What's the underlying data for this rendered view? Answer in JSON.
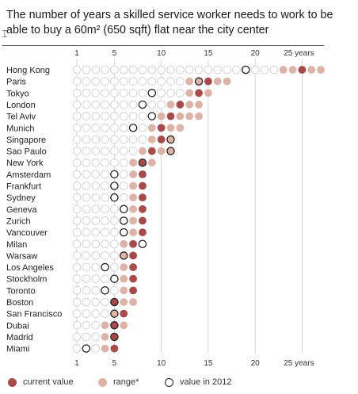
{
  "title": "The number of years a skilled service worker needs to work to be able to buy a 60m² (650 sqft) flat near the city center",
  "legend": {
    "current": "current value",
    "range": "range*",
    "y2012": "value in 2012"
  },
  "colors": {
    "current": "#a94a4a",
    "range": "#dcb3a6",
    "grid": "#c9c9c9",
    "outline": "#222222"
  },
  "chart_data": {
    "type": "dot-range",
    "x_ticks": [
      "1",
      "5",
      "10",
      "15",
      "20",
      "25 years"
    ],
    "x_tick_values": [
      1,
      5,
      10,
      15,
      20,
      25
    ],
    "xlim": [
      1,
      27
    ],
    "rows": [
      {
        "city": "Hong Kong",
        "current": 25,
        "range": [
          23,
          27
        ],
        "y2012": 19
      },
      {
        "city": "Paris",
        "current": 15,
        "range": [
          13,
          17
        ],
        "y2012": 14
      },
      {
        "city": "Tokyo",
        "current": 14,
        "range": [
          13,
          15
        ],
        "y2012": 9
      },
      {
        "city": "London",
        "current": 12,
        "range": [
          11,
          14
        ],
        "y2012": 8
      },
      {
        "city": "Tel Aviv",
        "current": 11,
        "range": [
          10,
          14
        ],
        "y2012": 9
      },
      {
        "city": "Munich",
        "current": 10,
        "range": [
          9,
          12
        ],
        "y2012": 7
      },
      {
        "city": "Singapore",
        "current": 10,
        "range": [
          9,
          11
        ],
        "y2012": 11
      },
      {
        "city": "Sao Paulo",
        "current": 9,
        "range": [
          8,
          11
        ],
        "y2012": 11
      },
      {
        "city": "New York",
        "current": 8,
        "range": [
          7,
          9
        ],
        "y2012": 8
      },
      {
        "city": "Amsterdam",
        "current": 8,
        "range": [
          7,
          8
        ],
        "y2012": 5
      },
      {
        "city": "Frankfurt",
        "current": 8,
        "range": [
          7,
          8
        ],
        "y2012": 5
      },
      {
        "city": "Sydney",
        "current": 8,
        "range": [
          7,
          8
        ],
        "y2012": 5
      },
      {
        "city": "Geneva",
        "current": 8,
        "range": [
          7,
          8
        ],
        "y2012": 6
      },
      {
        "city": "Zurich",
        "current": 8,
        "range": [
          7,
          8
        ],
        "y2012": 6
      },
      {
        "city": "Vancouver",
        "current": 8,
        "range": [
          7,
          8
        ],
        "y2012": 6
      },
      {
        "city": "Milan",
        "current": 7,
        "range": [
          6,
          7
        ],
        "y2012": 8
      },
      {
        "city": "Warsaw",
        "current": 7,
        "range": [
          6,
          7
        ],
        "y2012": 6
      },
      {
        "city": "Los Angeles",
        "current": 7,
        "range": [
          6,
          7
        ],
        "y2012": 4
      },
      {
        "city": "Stockholm",
        "current": 7,
        "range": [
          6,
          7
        ],
        "y2012": 5
      },
      {
        "city": "Toronto",
        "current": 7,
        "range": [
          6,
          7
        ],
        "y2012": 4
      },
      {
        "city": "Boston",
        "current": 5,
        "range": [
          5,
          7
        ],
        "y2012": 5
      },
      {
        "city": "San Francisco",
        "current": 6,
        "range": [
          5,
          6
        ],
        "y2012": 5
      },
      {
        "city": "Dubai",
        "current": 5,
        "range": [
          4,
          6
        ],
        "y2012": 5
      },
      {
        "city": "Madrid",
        "current": 5,
        "range": [
          4,
          5
        ],
        "y2012": 5
      },
      {
        "city": "Miami",
        "current": 5,
        "range": [
          4,
          5
        ],
        "y2012": 2
      }
    ]
  }
}
